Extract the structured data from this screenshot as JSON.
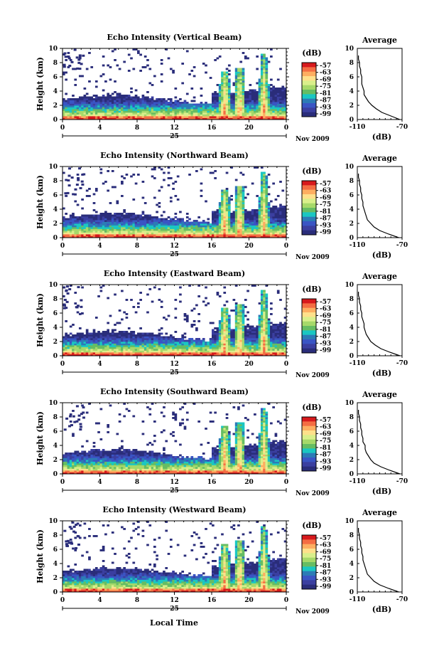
{
  "colorbar": {
    "unit_label": "(dB)",
    "tick_labels": [
      "-57",
      "-63",
      "-69",
      "-75",
      "-81",
      "-87",
      "-93",
      "-99"
    ],
    "colors": [
      "#d7191c",
      "#f46d43",
      "#fdae61",
      "#fee08b",
      "#d9ef8b",
      "#a6d96a",
      "#66bd63",
      "#1ac7c2",
      "#2c7bb6",
      "#3a55c4",
      "#3b3fa0",
      "#2a2d7a"
    ]
  },
  "date_labels": {
    "day": "25",
    "month_year": "Nov 2009"
  },
  "x_axis_title": "Local Time",
  "chart_data": [
    {
      "type": "heatmap",
      "title": "Echo Intensity (Vertical Beam)",
      "ylabel": "Height (km)",
      "x_ticks": [
        "0",
        "4",
        "8",
        "12",
        "16",
        "20",
        "0"
      ],
      "y_ticks": [
        "0",
        "2",
        "4",
        "6",
        "8",
        "10"
      ],
      "xlim": [
        0,
        24
      ],
      "ylim": [
        0,
        10
      ],
      "profile": {
        "title": "Average",
        "xlabel": "(dB)",
        "x_ticks": [
          "-110",
          "-70"
        ],
        "y_ticks": [
          "0",
          "2",
          "4",
          "6",
          "8",
          "10"
        ],
        "xlim": [
          -110,
          -70
        ],
        "heights": [
          0,
          0.5,
          1,
          1.5,
          2,
          2.5,
          3,
          3.5,
          4,
          4.5,
          5,
          5.5,
          6,
          6.5,
          7,
          7.5,
          8,
          8.5,
          9
        ],
        "values": [
          -72,
          -80,
          -88,
          -93,
          -97,
          -100,
          -102,
          -104,
          -104,
          -105,
          -106,
          -106,
          -106,
          -107,
          -107,
          -108,
          -108,
          -109,
          -109
        ]
      }
    },
    {
      "type": "heatmap",
      "title": "Echo Intensity (Northward Beam)",
      "ylabel": "Height (km)",
      "x_ticks": [
        "0",
        "4",
        "8",
        "12",
        "16",
        "20",
        "0"
      ],
      "y_ticks": [
        "0",
        "2",
        "4",
        "6",
        "8",
        "10"
      ],
      "xlim": [
        0,
        24
      ],
      "ylim": [
        0,
        10
      ],
      "profile": {
        "title": "Average",
        "xlabel": "(dB)",
        "x_ticks": [
          "-110",
          "-70"
        ],
        "y_ticks": [
          "0",
          "2",
          "4",
          "6",
          "8",
          "10"
        ],
        "xlim": [
          -110,
          -70
        ],
        "heights": [
          0,
          0.5,
          1,
          1.5,
          2,
          2.5,
          3,
          3.5,
          4,
          4.5,
          5,
          5.5,
          6,
          6.5,
          7,
          7.5,
          8,
          8.5,
          9
        ],
        "values": [
          -73,
          -82,
          -90,
          -95,
          -98,
          -101,
          -102,
          -103,
          -104,
          -105,
          -105,
          -106,
          -106,
          -107,
          -107,
          -108,
          -108,
          -109,
          -109
        ]
      }
    },
    {
      "type": "heatmap",
      "title": "Echo Intensity (Eastward Beam)",
      "ylabel": "Height (km)",
      "x_ticks": [
        "0",
        "4",
        "8",
        "12",
        "16",
        "20",
        "0"
      ],
      "y_ticks": [
        "0",
        "2",
        "4",
        "6",
        "8",
        "10"
      ],
      "xlim": [
        0,
        24
      ],
      "ylim": [
        0,
        10
      ],
      "profile": {
        "title": "Average",
        "xlabel": "(dB)",
        "x_ticks": [
          "-110",
          "-70"
        ],
        "y_ticks": [
          "0",
          "2",
          "4",
          "6",
          "8",
          "10"
        ],
        "xlim": [
          -110,
          -70
        ],
        "heights": [
          0,
          0.5,
          1,
          1.5,
          2,
          2.5,
          3,
          3.5,
          4,
          4.5,
          5,
          5.5,
          6,
          6.5,
          7,
          7.5,
          8,
          8.5,
          9
        ],
        "values": [
          -72,
          -81,
          -89,
          -94,
          -98,
          -100,
          -102,
          -103,
          -104,
          -104,
          -105,
          -106,
          -106,
          -107,
          -107,
          -108,
          -108,
          -109,
          -109
        ]
      }
    },
    {
      "type": "heatmap",
      "title": "Echo Intensity (Southward Beam)",
      "ylabel": "Height (km)",
      "x_ticks": [
        "0",
        "4",
        "8",
        "12",
        "16",
        "20",
        "0"
      ],
      "y_ticks": [
        "0",
        "2",
        "4",
        "6",
        "8",
        "10"
      ],
      "xlim": [
        0,
        24
      ],
      "ylim": [
        0,
        10
      ],
      "profile": {
        "title": "Average",
        "xlabel": "(dB)",
        "x_ticks": [
          "-110",
          "-70"
        ],
        "y_ticks": [
          "0",
          "2",
          "4",
          "6",
          "8",
          "10"
        ],
        "xlim": [
          -110,
          -70
        ],
        "heights": [
          0,
          0.5,
          1,
          1.5,
          2,
          2.5,
          3,
          3.5,
          4,
          4.5,
          5,
          5.5,
          6,
          6.5,
          7,
          7.5,
          8,
          8.5,
          9
        ],
        "values": [
          -72,
          -81,
          -89,
          -95,
          -98,
          -100,
          -102,
          -103,
          -103,
          -105,
          -105,
          -106,
          -106,
          -107,
          -107,
          -108,
          -108,
          -109,
          -109
        ]
      }
    },
    {
      "type": "heatmap",
      "title": "Echo Intensity (Westward Beam)",
      "ylabel": "Height (km)",
      "x_ticks": [
        "0",
        "4",
        "8",
        "12",
        "16",
        "20",
        "0"
      ],
      "y_ticks": [
        "0",
        "2",
        "4",
        "6",
        "8",
        "10"
      ],
      "xlim": [
        0,
        24
      ],
      "ylim": [
        0,
        10
      ],
      "profile": {
        "title": "Average",
        "xlabel": "(dB)",
        "x_ticks": [
          "-110",
          "-70"
        ],
        "y_ticks": [
          "0",
          "2",
          "4",
          "6",
          "8",
          "10"
        ],
        "xlim": [
          -110,
          -70
        ],
        "heights": [
          0,
          0.5,
          1,
          1.5,
          2,
          2.5,
          3,
          3.5,
          4,
          4.5,
          5,
          5.5,
          6,
          6.5,
          7,
          7.5,
          8,
          8.5,
          9
        ],
        "values": [
          -73,
          -82,
          -90,
          -95,
          -98,
          -101,
          -102,
          -103,
          -104,
          -105,
          -105,
          -106,
          -106,
          -107,
          -107,
          -108,
          -108,
          -109,
          -109
        ]
      }
    }
  ]
}
